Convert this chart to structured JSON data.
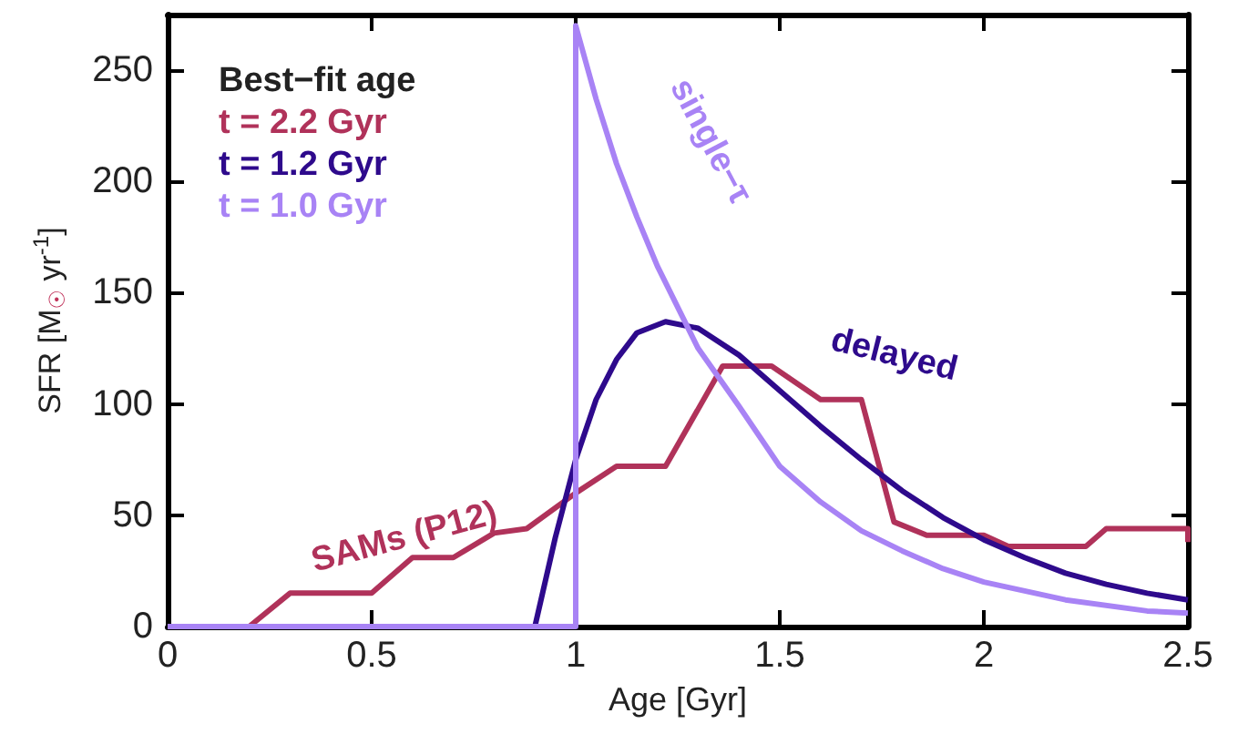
{
  "chart_data": {
    "type": "line",
    "xlabel": "Age [Gyr]",
    "ylabel": "SFR [M$_{☉}$ yr$^{-1}$]",
    "legend_title": "Best−fit age",
    "annotations": [
      "t = 2.2 Gyr",
      "t = 1.2 Gyr",
      "t = 1.0 Gyr"
    ],
    "xlim": [
      0,
      2.5
    ],
    "xticks": [
      0,
      0.5,
      1,
      1.5,
      2,
      2.5
    ],
    "ylim": [
      0,
      275
    ],
    "yticks": [
      0,
      50,
      100,
      150,
      200,
      250
    ],
    "grid": false,
    "marker": "none",
    "line_style": "solid",
    "series": [
      {
        "name": "SAMs (P12)",
        "color": "#b0325a",
        "x": [
          0,
          0.2,
          0.3,
          0.5,
          0.6,
          0.7,
          0.8,
          0.88,
          1.0,
          1.1,
          1.22,
          1.36,
          1.48,
          1.6,
          1.7,
          1.78,
          1.86,
          2.0,
          2.06,
          2.25,
          2.3,
          2.5,
          2.5
        ],
        "values": [
          0,
          0,
          15,
          15,
          31,
          31,
          42,
          44,
          60,
          72,
          72,
          117,
          117,
          102,
          102,
          47,
          41,
          41,
          36,
          36,
          44,
          44,
          38
        ]
      },
      {
        "name": "delayed",
        "color": "#2e0a8c",
        "x": [
          0,
          0.9,
          0.95,
          1.0,
          1.05,
          1.1,
          1.15,
          1.22,
          1.3,
          1.4,
          1.5,
          1.6,
          1.7,
          1.8,
          1.9,
          2.0,
          2.1,
          2.2,
          2.3,
          2.4,
          2.5
        ],
        "values": [
          0,
          0,
          40,
          75,
          102,
          120,
          132,
          137,
          134,
          122,
          106,
          90,
          75,
          61,
          49,
          39,
          31,
          24,
          19,
          15,
          12
        ]
      },
      {
        "name": "single−τ",
        "color": "#a883f5",
        "x": [
          0,
          1.0,
          1.0,
          1.05,
          1.1,
          1.15,
          1.2,
          1.3,
          1.4,
          1.5,
          1.6,
          1.7,
          1.8,
          1.9,
          2.0,
          2.2,
          2.4,
          2.5
        ],
        "values": [
          0,
          0,
          270,
          237,
          208,
          184,
          162,
          125,
          99,
          72,
          56,
          43,
          34,
          26,
          20,
          12,
          7,
          6
        ]
      }
    ]
  }
}
